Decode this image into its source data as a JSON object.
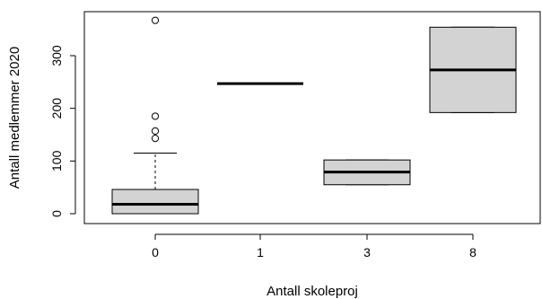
{
  "chart_data": {
    "type": "boxplot",
    "title": "",
    "xlabel": "Antall skoleproj",
    "ylabel": "Antall medlemmer 2020",
    "categories": [
      "0",
      "1",
      "3",
      "8"
    ],
    "ylim": [
      -12,
      380
    ],
    "yticks": [
      0,
      100,
      200,
      300
    ],
    "yticks_labels": [
      "0",
      "100",
      "200",
      "300"
    ],
    "grid": false,
    "legend": "none",
    "box_fill": "#d3d3d3",
    "boxes": [
      {
        "category": "0",
        "whisker_low": 0,
        "q1": 0,
        "median": 18,
        "q3": 46,
        "whisker_high": 115,
        "outliers": [
          143,
          157,
          185,
          367
        ]
      },
      {
        "category": "1",
        "whisker_low": 247,
        "q1": 247,
        "median": 247,
        "q3": 247,
        "whisker_high": 247,
        "outliers": []
      },
      {
        "category": "3",
        "whisker_low": 55,
        "q1": 55,
        "median": 79,
        "q3": 102,
        "whisker_high": 102,
        "outliers": []
      },
      {
        "category": "8",
        "whisker_low": 192,
        "q1": 192,
        "median": 273,
        "q3": 354,
        "whisker_high": 354,
        "outliers": []
      }
    ]
  }
}
